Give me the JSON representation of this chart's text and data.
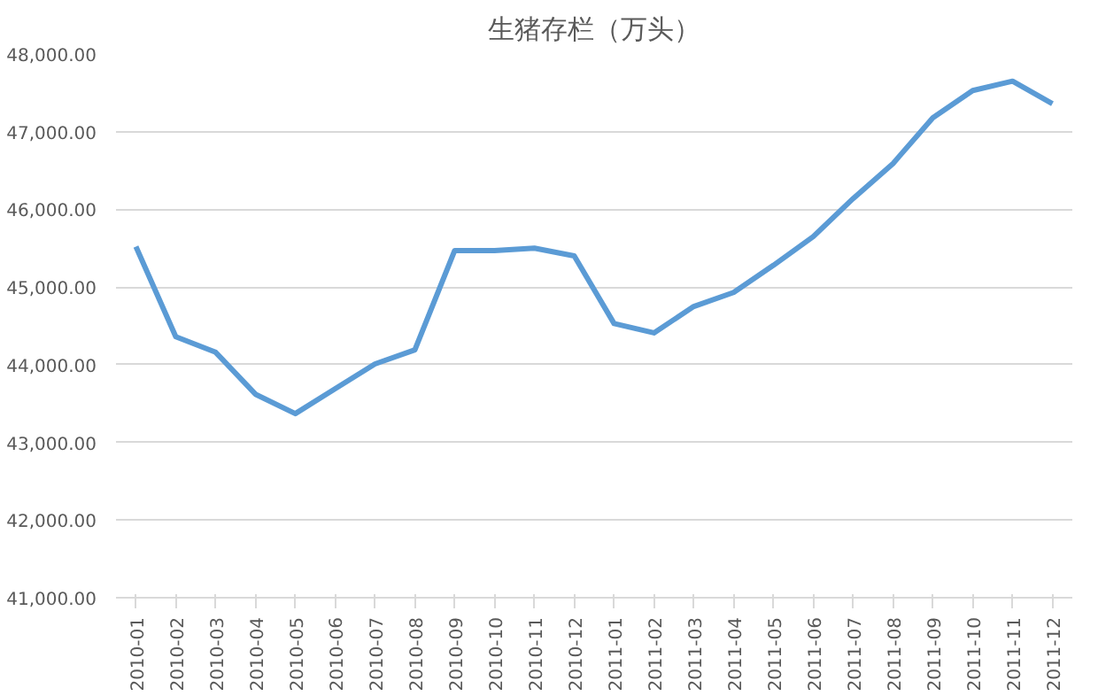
{
  "chart_data": {
    "type": "line",
    "title": "生猪存栏（万头）",
    "categories": [
      "2010-01",
      "2010-02",
      "2010-03",
      "2010-04",
      "2010-05",
      "2010-06",
      "2010-07",
      "2010-08",
      "2010-09",
      "2010-10",
      "2010-11",
      "2010-12",
      "2011-01",
      "2011-02",
      "2011-03",
      "2011-04",
      "2011-05",
      "2011-06",
      "2011-07",
      "2011-08",
      "2011-09",
      "2011-10",
      "2011-11",
      "2011-12"
    ],
    "series": [
      {
        "color": "#5b9bd5",
        "values": [
          45520,
          44360,
          44160,
          43620,
          43370,
          43690,
          44010,
          44190,
          45470,
          45470,
          45500,
          45400,
          44530,
          44410,
          44750,
          44930,
          45280,
          45650,
          46140,
          46590,
          47180,
          47530,
          47650,
          47360
        ]
      }
    ],
    "ylim": [
      41000,
      48000
    ],
    "yticks": [
      {
        "value": 41000,
        "label": "41,000.00"
      },
      {
        "value": 42000,
        "label": "42,000.00"
      },
      {
        "value": 43000,
        "label": "43,000.00"
      },
      {
        "value": 44000,
        "label": "44,000.00"
      },
      {
        "value": 45000,
        "label": "45,000.00"
      },
      {
        "value": 46000,
        "label": "46,000.00"
      },
      {
        "value": 47000,
        "label": "47,000.00"
      },
      {
        "value": 48000,
        "label": "48,000.00"
      }
    ],
    "grid": "y",
    "marker": "none",
    "line_style": "solid"
  }
}
